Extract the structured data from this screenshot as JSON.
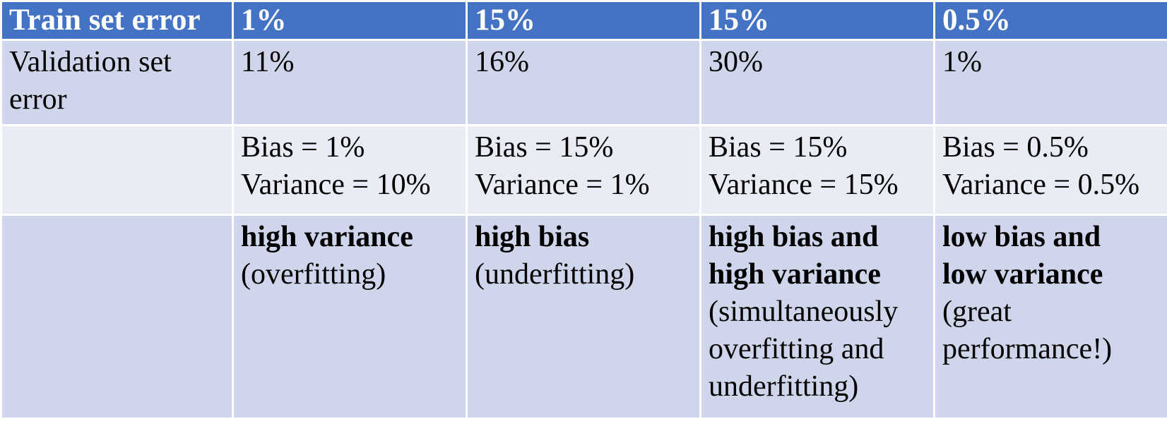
{
  "colors": {
    "header_bg": "#4472c4",
    "row_dark_bg": "#cfd5ea",
    "row_light_bg": "#e9ebf5",
    "grid_lines": "#ffffff"
  },
  "header": {
    "label": "Train set error",
    "values": [
      "1%",
      "15%",
      "15%",
      "0.5%"
    ]
  },
  "validation": {
    "label_line1": "Validation set",
    "label_line2": "error",
    "values": [
      "11%",
      "16%",
      "30%",
      "1%"
    ]
  },
  "bias_variance": [
    {
      "bias": "Bias = 1%",
      "variance": "Variance = 10%"
    },
    {
      "bias": "Bias = 15%",
      "variance": "Variance = 1%"
    },
    {
      "bias": "Bias = 15%",
      "variance": "Variance = 15%"
    },
    {
      "bias": "Bias = 0.5%",
      "variance": "Variance = 0.5%"
    }
  ],
  "diagnosis": [
    {
      "bold": [
        "high variance"
      ],
      "plain": [
        "(overfitting)"
      ]
    },
    {
      "bold": [
        "high bias"
      ],
      "plain": [
        "(underfitting)"
      ]
    },
    {
      "bold": [
        "high bias and",
        "high variance"
      ],
      "plain": [
        "(simultaneously",
        "overfitting and",
        "underfitting)"
      ]
    },
    {
      "bold": [
        "low bias and",
        "low variance"
      ],
      "plain": [
        "(great",
        "performance!)"
      ]
    }
  ]
}
